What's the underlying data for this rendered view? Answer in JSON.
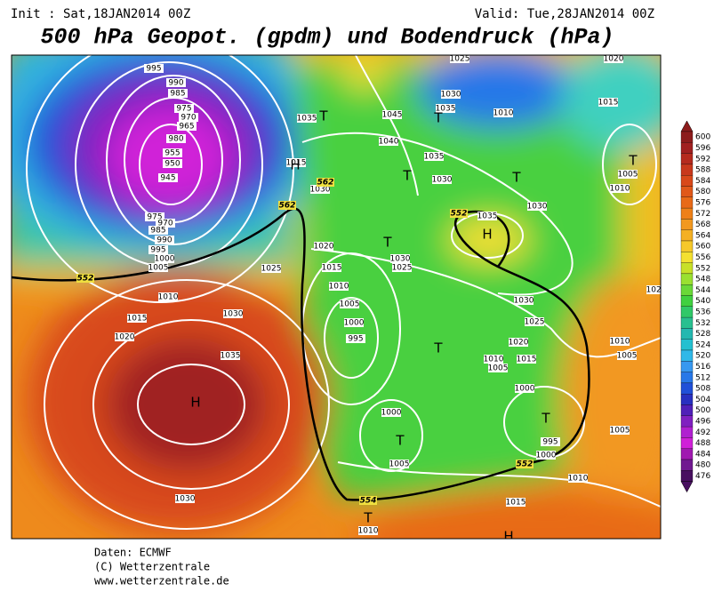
{
  "header": {
    "init": "Init : Sat,18JAN2014 00Z",
    "valid": "Valid: Tue,28JAN2014 00Z",
    "title": "500 hPa Geopot. (gpdm) und Bodendruck (hPa)"
  },
  "map": {
    "contour_labels": [
      995,
      990,
      985,
      975,
      970,
      965,
      980,
      955,
      950,
      945,
      975,
      970,
      985,
      990,
      995,
      1000,
      1005,
      1010,
      1015,
      1020,
      1035,
      1030,
      1025,
      1030,
      1035,
      1015,
      1030,
      1045,
      1040,
      1035,
      1030,
      1035,
      1030,
      1030,
      1025,
      1020,
      1015,
      1010,
      1005,
      1000,
      995,
      1030,
      1025,
      1020,
      1015,
      1010,
      1005,
      1000,
      1000,
      1005,
      995,
      1000,
      1005,
      1010,
      1015,
      1010,
      1025,
      1030,
      1035,
      1010,
      1020,
      1015,
      1005,
      1010,
      1020,
      1010,
      1005
    ],
    "contour_552_labels": [
      552,
      562,
      562,
      552,
      552,
      554
    ],
    "centers": [
      "T",
      "T",
      "H",
      "T",
      "T",
      "T",
      "T",
      "H",
      "T",
      "T",
      "T",
      "H",
      "T",
      "H"
    ]
  },
  "colorbar": {
    "values": [
      600,
      596,
      592,
      588,
      584,
      580,
      576,
      572,
      568,
      564,
      560,
      556,
      552,
      548,
      544,
      540,
      536,
      532,
      528,
      524,
      520,
      516,
      512,
      508,
      504,
      500,
      496,
      492,
      488,
      484,
      480,
      476
    ],
    "colors": [
      "#8c1c1c",
      "#a02020",
      "#b52a1e",
      "#c8381c",
      "#d8481a",
      "#e0581a",
      "#e86a18",
      "#ee8018",
      "#f29820",
      "#f4b024",
      "#f6c82a",
      "#f4e030",
      "#c8e028",
      "#9ae030",
      "#6ad838",
      "#40d040",
      "#30c868",
      "#28c090",
      "#24b8b0",
      "#24c0d0",
      "#30b8e8",
      "#3898f0",
      "#2878e8",
      "#2050d8",
      "#2830c0",
      "#5020b8",
      "#8020c0",
      "#b020d0",
      "#d020d8",
      "#a018b0",
      "#701890",
      "#481060"
    ]
  },
  "footer": {
    "lines": [
      "Daten: ECMWF",
      "(C) Wetterzentrale",
      "www.wetterzentrale.de"
    ]
  }
}
